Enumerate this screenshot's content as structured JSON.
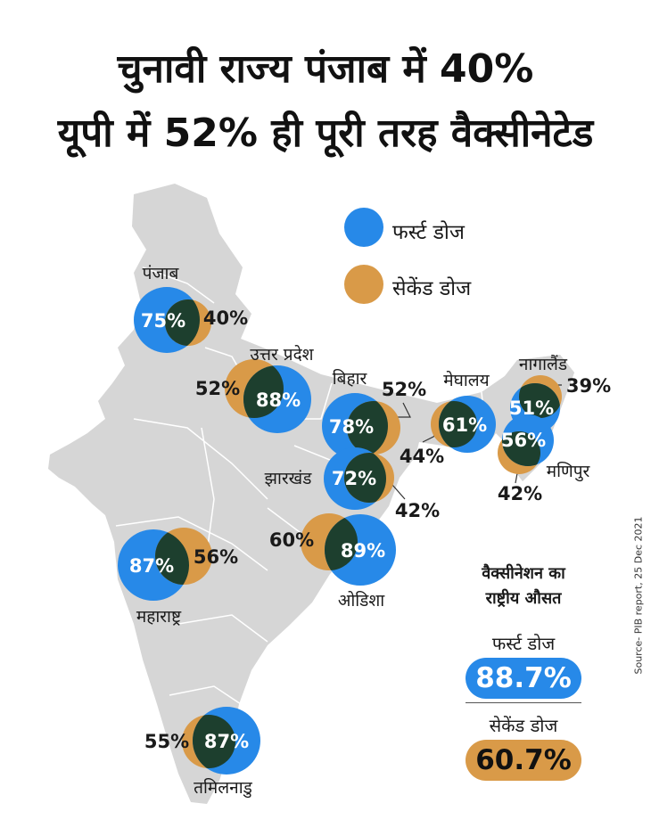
{
  "title": {
    "line1": "चुनावी राज्य पंजाब में 40%",
    "line2": "यूपी में 52% ही पूरी तरह वैक्सीनेटेड"
  },
  "colors": {
    "first_dose": "#2789e8",
    "second_dose": "#d99a48",
    "overlap": "#1d3f2e",
    "map_fill": "#d6d6d6",
    "map_border": "#ffffff"
  },
  "legend": {
    "first_dose": "फर्स्ट डोज",
    "second_dose": "सेकेंड डोज"
  },
  "states": [
    {
      "name": "पंजाब",
      "first_dose": "75%",
      "second_dose": "40%"
    },
    {
      "name": "उत्तर प्रदेश",
      "first_dose": "88%",
      "second_dose": "52%"
    },
    {
      "name": "बिहार",
      "first_dose": "78%",
      "second_dose": "52%"
    },
    {
      "name": "झारखंड",
      "first_dose": "72%",
      "second_dose": "42%"
    },
    {
      "name": "मेघालय",
      "first_dose": "61%",
      "second_dose": "44%"
    },
    {
      "name": "नागालैंड",
      "first_dose": "51%",
      "second_dose": "39%"
    },
    {
      "name": "मणिपुर",
      "first_dose": "56%",
      "second_dose": "42%"
    },
    {
      "name": "ओडिशा",
      "first_dose": "89%",
      "second_dose": "60%"
    },
    {
      "name": "महाराष्ट्र",
      "first_dose": "87%",
      "second_dose": "56%"
    },
    {
      "name": "तमिलनाडु",
      "first_dose": "87%",
      "second_dose": "55%"
    }
  ],
  "national_average": {
    "title_line1": "वैक्सीनेशन का",
    "title_line2": "राष्ट्रीय औसत",
    "first_dose_label": "फर्स्ट डोज",
    "first_dose_value": "88.7%",
    "second_dose_label": "सेकेंड डोज",
    "second_dose_value": "60.7%"
  },
  "source": "Source- PIB report, 25 Dec 2021"
}
